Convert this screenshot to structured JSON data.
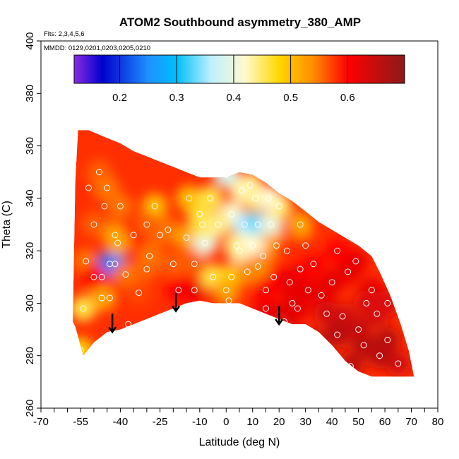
{
  "chart_data": {
    "type": "heatmap",
    "title": "ATOM2 Southbound asymmetry_380_AMP",
    "subtitle_flights": "Flts: 2,3,4,5,6",
    "subtitle_dates": "MMDD: 0129,0201,0203,0205,0210",
    "xlabel": "Latitude (deg N)",
    "ylabel": "Theta (C)",
    "xlim": [
      -70,
      80
    ],
    "ylim": [
      260,
      400
    ],
    "x_ticks_labeled": [
      -70,
      -55,
      -40,
      -25,
      -10,
      0,
      10,
      20,
      30,
      40,
      50,
      60,
      70,
      80
    ],
    "x_tick_labels": [
      "-70",
      "-55",
      "-40",
      "-25",
      "-10",
      "0",
      "10",
      "20",
      "30",
      "40",
      "50",
      "60",
      "70",
      "80"
    ],
    "x_ticks_minor": [
      -65,
      -60,
      -50,
      -45,
      -35,
      -30,
      -20,
      -15,
      -5,
      5,
      15,
      25,
      35,
      45,
      55,
      65,
      75
    ],
    "y_ticks": [
      260,
      280,
      300,
      320,
      340,
      360,
      380,
      400
    ],
    "y_tick_labels": [
      "260",
      "280",
      "300",
      "320",
      "340",
      "360",
      "380",
      "400"
    ],
    "colorbar": {
      "range": [
        0.12,
        0.7
      ],
      "ticks": [
        0.2,
        0.3,
        0.4,
        0.5,
        0.6
      ],
      "tick_labels": [
        "0.2",
        "0.3",
        "0.4",
        "0.5",
        "0.6"
      ],
      "stops": [
        {
          "v": 0.12,
          "color": "#8a2be2"
        },
        {
          "v": 0.17,
          "color": "#0000cd"
        },
        {
          "v": 0.25,
          "color": "#1e90ff"
        },
        {
          "v": 0.3,
          "color": "#00bfff"
        },
        {
          "v": 0.36,
          "color": "#bfefff"
        },
        {
          "v": 0.42,
          "color": "#fffacd"
        },
        {
          "v": 0.48,
          "color": "#ffd700"
        },
        {
          "v": 0.54,
          "color": "#ff8c00"
        },
        {
          "v": 0.6,
          "color": "#ff0000"
        },
        {
          "v": 0.7,
          "color": "#8b1a1a"
        }
      ]
    },
    "domain_upper": [
      [
        -57,
        347
      ],
      [
        -56,
        366
      ],
      [
        -52,
        366
      ],
      [
        -45,
        363
      ],
      [
        -40,
        361
      ],
      [
        -35,
        358
      ],
      [
        -30,
        356
      ],
      [
        -25,
        354
      ],
      [
        -20,
        352
      ],
      [
        -15,
        350
      ],
      [
        -10,
        348
      ],
      [
        -5,
        348
      ],
      [
        0,
        348
      ],
      [
        5,
        350
      ],
      [
        10,
        349
      ],
      [
        15,
        346
      ],
      [
        20,
        342
      ],
      [
        25,
        339
      ],
      [
        30,
        335
      ],
      [
        35,
        331
      ],
      [
        40,
        328
      ],
      [
        45,
        325
      ],
      [
        50,
        322
      ],
      [
        55,
        318
      ],
      [
        58,
        312
      ],
      [
        62,
        303
      ],
      [
        66,
        292
      ],
      [
        69,
        282
      ],
      [
        71,
        272
      ]
    ],
    "domain_lower": [
      [
        71,
        272
      ],
      [
        65,
        272
      ],
      [
        55,
        272
      ],
      [
        50,
        274
      ],
      [
        45,
        278
      ],
      [
        40,
        284
      ],
      [
        35,
        289
      ],
      [
        30,
        292
      ],
      [
        25,
        292
      ],
      [
        20,
        294
      ],
      [
        15,
        296
      ],
      [
        10,
        298
      ],
      [
        5,
        300
      ],
      [
        0,
        300
      ],
      [
        -5,
        300
      ],
      [
        -10,
        301
      ],
      [
        -15,
        300
      ],
      [
        -20,
        298
      ],
      [
        -25,
        296
      ],
      [
        -30,
        294
      ],
      [
        -35,
        292
      ],
      [
        -40,
        290
      ],
      [
        -45,
        289
      ],
      [
        -50,
        285
      ],
      [
        -54,
        280
      ],
      [
        -57,
        291
      ],
      [
        -58,
        293
      ]
    ],
    "samples": [
      {
        "lat": -55,
        "theta": 282,
        "value": 0.48
      },
      {
        "lat": -54,
        "theta": 298,
        "value": 0.46
      },
      {
        "lat": -53,
        "theta": 316,
        "value": 0.55
      },
      {
        "lat": -52,
        "theta": 344,
        "value": 0.58
      },
      {
        "lat": -48,
        "theta": 350,
        "value": 0.56
      },
      {
        "lat": -47,
        "theta": 310,
        "value": 0.6
      },
      {
        "lat": -46,
        "theta": 337,
        "value": 0.58
      },
      {
        "lat": -45,
        "theta": 344,
        "value": 0.55
      },
      {
        "lat": -44,
        "theta": 315,
        "value": 0.2
      },
      {
        "lat": -42,
        "theta": 326,
        "value": 0.52
      },
      {
        "lat": -40,
        "theta": 337,
        "value": 0.55
      },
      {
        "lat": -37,
        "theta": 292,
        "value": 0.58
      },
      {
        "lat": -35,
        "theta": 326,
        "value": 0.6
      },
      {
        "lat": -30,
        "theta": 313,
        "value": 0.56
      },
      {
        "lat": -27,
        "theta": 337,
        "value": 0.5
      },
      {
        "lat": -25,
        "theta": 326,
        "value": 0.56
      },
      {
        "lat": -22,
        "theta": 328,
        "value": 0.55
      },
      {
        "lat": -15,
        "theta": 325,
        "value": 0.52
      },
      {
        "lat": -12,
        "theta": 305,
        "value": 0.62
      },
      {
        "lat": -10,
        "theta": 334,
        "value": 0.47
      },
      {
        "lat": -8,
        "theta": 323,
        "value": 0.4
      },
      {
        "lat": -5,
        "theta": 310,
        "value": 0.46
      },
      {
        "lat": 0,
        "theta": 349,
        "value": 0.38
      },
      {
        "lat": 1,
        "theta": 301,
        "value": 0.58
      },
      {
        "lat": 2,
        "theta": 334,
        "value": 0.42
      },
      {
        "lat": 5,
        "theta": 320,
        "value": 0.42
      },
      {
        "lat": 7,
        "theta": 330,
        "value": 0.36
      },
      {
        "lat": 9,
        "theta": 345,
        "value": 0.44
      },
      {
        "lat": 12,
        "theta": 330,
        "value": 0.33
      },
      {
        "lat": 14,
        "theta": 318,
        "value": 0.56
      },
      {
        "lat": 15,
        "theta": 298,
        "value": 0.62
      },
      {
        "lat": 18,
        "theta": 310,
        "value": 0.6
      },
      {
        "lat": 22,
        "theta": 293,
        "value": 0.64
      },
      {
        "lat": 25,
        "theta": 300,
        "value": 0.62
      },
      {
        "lat": 28,
        "theta": 313,
        "value": 0.6
      },
      {
        "lat": 30,
        "theta": 322,
        "value": 0.58
      },
      {
        "lat": 33,
        "theta": 285,
        "value": 0.66
      },
      {
        "lat": 36,
        "theta": 303,
        "value": 0.62
      },
      {
        "lat": 40,
        "theta": 308,
        "value": 0.62
      },
      {
        "lat": 44,
        "theta": 295,
        "value": 0.64
      },
      {
        "lat": 47,
        "theta": 276,
        "value": 0.66
      },
      {
        "lat": 49,
        "theta": 316,
        "value": 0.62
      },
      {
        "lat": 52,
        "theta": 284,
        "value": 0.66
      },
      {
        "lat": 55,
        "theta": 305,
        "value": 0.62
      },
      {
        "lat": 57,
        "theta": 296,
        "value": 0.64
      },
      {
        "lat": 61,
        "theta": 286,
        "value": 0.66
      },
      {
        "lat": 65,
        "theta": 277,
        "value": 0.64
      }
    ],
    "markers": [
      {
        "lat": -44,
        "theta": 302,
        "value": 0.58
      },
      {
        "lat": -42,
        "theta": 315,
        "value": 0.24
      },
      {
        "lat": -41,
        "theta": 323,
        "value": 0.52
      },
      {
        "lat": -38,
        "theta": 311,
        "value": 0.55
      },
      {
        "lat": -33,
        "theta": 304,
        "value": 0.57
      },
      {
        "lat": -29,
        "theta": 318,
        "value": 0.55
      },
      {
        "lat": -20,
        "theta": 315,
        "value": 0.56
      },
      {
        "lat": -18,
        "theta": 305,
        "value": 0.6
      },
      {
        "lat": -14,
        "theta": 340,
        "value": 0.5
      },
      {
        "lat": -9,
        "theta": 330,
        "value": 0.46
      },
      {
        "lat": -6,
        "theta": 340,
        "value": 0.46
      },
      {
        "lat": -3,
        "theta": 330,
        "value": 0.44
      },
      {
        "lat": 2,
        "theta": 310,
        "value": 0.48
      },
      {
        "lat": 4,
        "theta": 322,
        "value": 0.44
      },
      {
        "lat": 8,
        "theta": 312,
        "value": 0.54
      },
      {
        "lat": 10,
        "theta": 322,
        "value": 0.42
      },
      {
        "lat": 11,
        "theta": 340,
        "value": 0.45
      },
      {
        "lat": 12,
        "theta": 314,
        "value": 0.54
      },
      {
        "lat": 17,
        "theta": 330,
        "value": 0.4
      },
      {
        "lat": 19,
        "theta": 322,
        "value": 0.52
      },
      {
        "lat": 20,
        "theta": 337,
        "value": 0.45
      },
      {
        "lat": 23,
        "theta": 320,
        "value": 0.58
      },
      {
        "lat": 24,
        "theta": 308,
        "value": 0.62
      },
      {
        "lat": 27,
        "theta": 298,
        "value": 0.62
      },
      {
        "lat": 31,
        "theta": 305,
        "value": 0.62
      },
      {
        "lat": 33,
        "theta": 315,
        "value": 0.6
      },
      {
        "lat": 38,
        "theta": 296,
        "value": 0.64
      },
      {
        "lat": 42,
        "theta": 288,
        "value": 0.66
      },
      {
        "lat": 42,
        "theta": 320,
        "value": 0.6
      },
      {
        "lat": 46,
        "theta": 312,
        "value": 0.62
      },
      {
        "lat": 53,
        "theta": 300,
        "value": 0.63
      },
      {
        "lat": 58,
        "theta": 280,
        "value": 0.66
      },
      {
        "lat": 61,
        "theta": 300,
        "value": 0.63
      },
      {
        "lat": -47,
        "theta": 302,
        "value": 0.52
      },
      {
        "lat": -12,
        "theta": 315,
        "value": 0.56
      },
      {
        "lat": 0,
        "theta": 305,
        "value": 0.52
      },
      {
        "lat": 20,
        "theta": 292,
        "value": 0.63
      },
      {
        "lat": 35,
        "theta": 278,
        "value": 0.66
      },
      {
        "lat": 50,
        "theta": 290,
        "value": 0.65
      },
      {
        "lat": 15,
        "theta": 305,
        "value": 0.6
      },
      {
        "lat": -50,
        "theta": 330,
        "value": 0.56
      },
      {
        "lat": -50,
        "theta": 310,
        "value": 0.6
      },
      {
        "lat": -30,
        "theta": 330,
        "value": 0.56
      },
      {
        "lat": 6,
        "theta": 343,
        "value": 0.43
      },
      {
        "lat": 16,
        "theta": 340,
        "value": 0.42
      },
      {
        "lat": 28,
        "theta": 330,
        "value": 0.52
      }
    ],
    "arrows": [
      {
        "lat": -43,
        "theta_top": 296,
        "theta_tip": 289
      },
      {
        "lat": -19,
        "theta_top": 304,
        "theta_tip": 297
      },
      {
        "lat": 20,
        "theta_top": 299,
        "theta_tip": 292
      }
    ]
  }
}
